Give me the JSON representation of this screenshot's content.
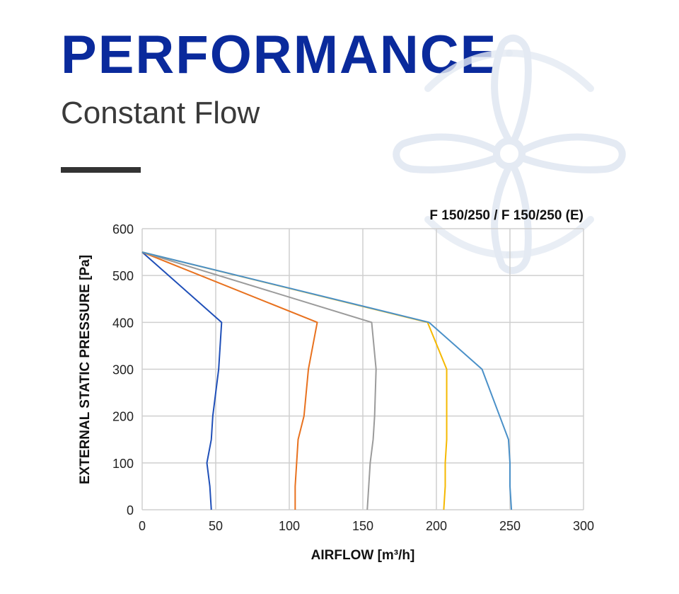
{
  "header": {
    "title": "PERFORMANCE",
    "subtitle": "Constant Flow"
  },
  "watermark": {
    "icon": "fan-icon",
    "color": "#e4eaf3"
  },
  "chart_data": {
    "type": "line",
    "title": "F 150/250 / F 150/250 (E)",
    "xlabel": "AIRFLOW [m³/h]",
    "ylabel": "EXTERNAL STATIC PRESSURE [Pa]",
    "xlim": [
      0,
      300
    ],
    "ylim": [
      0,
      600
    ],
    "xticks": [
      0,
      50,
      100,
      150,
      200,
      250,
      300
    ],
    "yticks": [
      0,
      100,
      200,
      300,
      400,
      500,
      600
    ],
    "grid": true,
    "series": [
      {
        "color": "#1f4fb8",
        "points": [
          [
            0,
            550
          ],
          [
            54,
            400
          ],
          [
            52,
            300
          ],
          [
            48,
            200
          ],
          [
            47,
            150
          ],
          [
            44,
            100
          ],
          [
            46,
            50
          ],
          [
            47,
            0
          ]
        ]
      },
      {
        "color": "#e8711e",
        "points": [
          [
            0,
            550
          ],
          [
            119,
            400
          ],
          [
            113,
            300
          ],
          [
            110,
            200
          ],
          [
            106,
            150
          ],
          [
            105,
            100
          ],
          [
            104,
            50
          ],
          [
            104,
            0
          ]
        ]
      },
      {
        "color": "#9b9b9b",
        "points": [
          [
            0,
            550
          ],
          [
            156,
            400
          ],
          [
            159,
            300
          ],
          [
            158,
            200
          ],
          [
            157,
            150
          ],
          [
            155,
            100
          ],
          [
            154,
            50
          ],
          [
            153,
            0
          ]
        ]
      },
      {
        "color": "#f5b800",
        "points": [
          [
            0,
            550
          ],
          [
            194,
            400
          ],
          [
            207,
            300
          ],
          [
            207,
            200
          ],
          [
            207,
            150
          ],
          [
            206,
            100
          ],
          [
            206,
            50
          ],
          [
            205,
            0
          ]
        ]
      },
      {
        "color": "#4a90c8",
        "points": [
          [
            0,
            550
          ],
          [
            195,
            400
          ],
          [
            231,
            300
          ],
          [
            243,
            200
          ],
          [
            249,
            150
          ],
          [
            250,
            100
          ],
          [
            250,
            50
          ],
          [
            251,
            0
          ]
        ]
      }
    ]
  }
}
